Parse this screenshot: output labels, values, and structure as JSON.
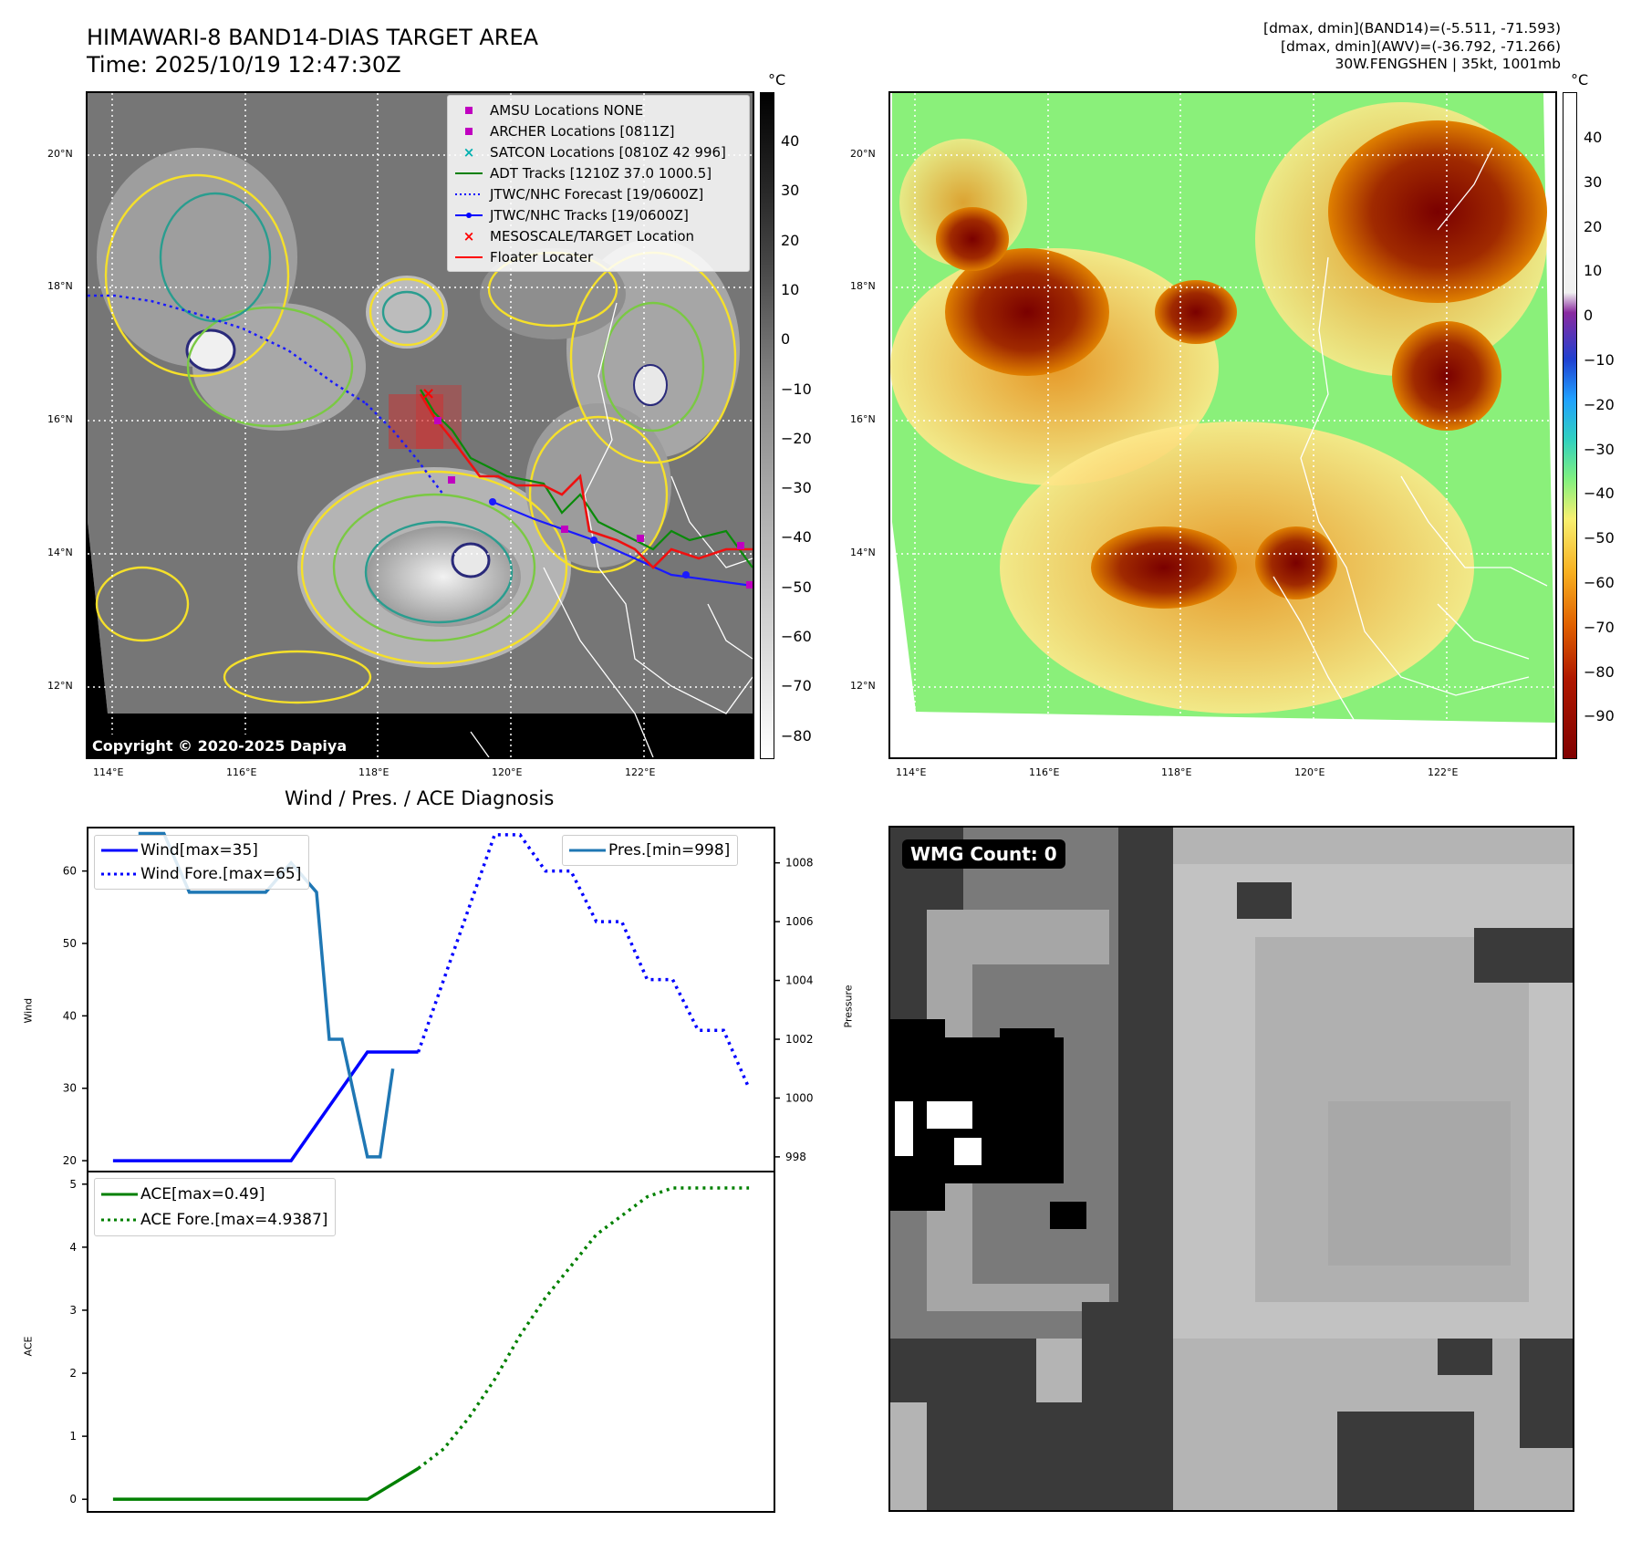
{
  "header": {
    "title_line1": "HIMAWARI-8 BAND14-DIAS TARGET AREA",
    "title_line2": "Time: 2025/10/19 12:47:30Z",
    "right_line1": "[dmax, dmin](BAND14)=(-5.511, -71.593)",
    "right_line2": "[dmax, dmin](AWV)=(-36.792, -71.266)",
    "right_line3": "30W.FENGSHEN | 35kt, 1001mb"
  },
  "map": {
    "lat_labels": [
      "20°N",
      "18°N",
      "16°N",
      "14°N",
      "12°N"
    ],
    "lon_labels": [
      "114°E",
      "116°E",
      "118°E",
      "120°E",
      "122°E"
    ],
    "copyright": "Copyright © 2020-2025 Dapiya",
    "legend": [
      {
        "label": "AMSU Locations NONE",
        "marker": "square",
        "color": "#c000c0"
      },
      {
        "label": "ARCHER Locations [0811Z]",
        "marker": "square",
        "color": "#c000c0"
      },
      {
        "label": "SATCON Locations [0810Z 42 996]",
        "marker": "x",
        "color": "#00b0b0"
      },
      {
        "label": "ADT Tracks [1210Z 37.0 1000.5]",
        "marker": "line",
        "color": "#008000"
      },
      {
        "label": "JTWC/NHC Forecast [19/0600Z]",
        "marker": "dotted",
        "color": "#0000ff"
      },
      {
        "label": "JTWC/NHC Tracks [19/0600Z]",
        "marker": "line-dot",
        "color": "#0000ff"
      },
      {
        "label": "MESOSCALE/TARGET Location",
        "marker": "x",
        "color": "#ff0000"
      },
      {
        "label": "Floater Locater",
        "marker": "line",
        "color": "#ff0000"
      }
    ]
  },
  "colorbar_left": {
    "unit": "°C",
    "ticks": [
      "40",
      "30",
      "20",
      "10",
      "0",
      "−10",
      "−20",
      "−30",
      "−40",
      "−50",
      "−60",
      "−70",
      "−80"
    ]
  },
  "colorbar_right": {
    "unit": "°C",
    "ticks": [
      "40",
      "30",
      "20",
      "10",
      "0",
      "−10",
      "−20",
      "−30",
      "−40",
      "−50",
      "−60",
      "−70",
      "−80",
      "−90"
    ]
  },
  "wmg": {
    "label": "WMG Count: 0"
  },
  "chart_data": [
    {
      "type": "line",
      "title": "Wind / Pres. / ACE Diagnosis",
      "ylabel": "Wind",
      "ylabel_right": "Pressure",
      "ylim": [
        18.5,
        66
      ],
      "ylim_right": [
        997.5,
        1009.2
      ],
      "y_ticks": [
        "60",
        "50",
        "40",
        "30",
        "20"
      ],
      "y_ticks_right": [
        "1008",
        "1006",
        "1004",
        "1002",
        "1000",
        "998"
      ],
      "legend_left": [
        "Wind[max=35]",
        "Wind Fore.[max=65]"
      ],
      "legend_right": [
        "Pres.[min=998]"
      ],
      "series": [
        {
          "name": "Wind[max=35]",
          "style": "solid",
          "color": "#0000ff",
          "x": [
            0,
            1,
            2,
            3,
            4,
            5,
            6,
            7,
            8,
            9,
            10,
            11,
            12
          ],
          "values": [
            20,
            20,
            20,
            20,
            20,
            20,
            20,
            20,
            25,
            30,
            35,
            35,
            35
          ]
        },
        {
          "name": "Wind Fore.[max=65]",
          "style": "dotted",
          "color": "#0000ff",
          "x": [
            12,
            13,
            14,
            15,
            16,
            17,
            18,
            19,
            20,
            21,
            22,
            23,
            24,
            25
          ],
          "values": [
            35,
            45,
            55,
            65,
            65,
            60,
            60,
            53,
            53,
            45,
            45,
            38,
            38,
            30
          ]
        },
        {
          "name": "Pres.[min=998]",
          "style": "solid",
          "color": "#1f77b4",
          "x": [
            1,
            2,
            3,
            4,
            5,
            6,
            7,
            8,
            8.5,
            9,
            9.5,
            10,
            10.5,
            11
          ],
          "values": [
            1009,
            1009,
            1007,
            1007,
            1007,
            1007,
            1008,
            1007,
            1002,
            1002,
            1000,
            998,
            998,
            1001
          ]
        }
      ]
    },
    {
      "type": "line",
      "ylabel": "ACE",
      "ylim": [
        -0.2,
        5.2
      ],
      "y_ticks": [
        "5",
        "4",
        "3",
        "2",
        "1",
        "0"
      ],
      "legend": [
        "ACE[max=0.49]",
        "ACE Fore.[max=4.9387]"
      ],
      "series": [
        {
          "name": "ACE[max=0.49]",
          "style": "solid",
          "color": "#008000",
          "x": [
            0,
            2,
            4,
            6,
            8,
            10,
            12
          ],
          "values": [
            0,
            0,
            0,
            0,
            0,
            0,
            0.49
          ]
        },
        {
          "name": "ACE Fore.[max=4.9387]",
          "style": "dotted",
          "color": "#008000",
          "x": [
            12,
            13,
            14,
            15,
            16,
            17,
            18,
            19,
            20,
            21,
            22,
            23,
            24,
            25
          ],
          "values": [
            0.49,
            0.8,
            1.3,
            1.9,
            2.6,
            3.2,
            3.7,
            4.2,
            4.5,
            4.8,
            4.94,
            4.94,
            4.94,
            4.94
          ]
        }
      ]
    }
  ]
}
